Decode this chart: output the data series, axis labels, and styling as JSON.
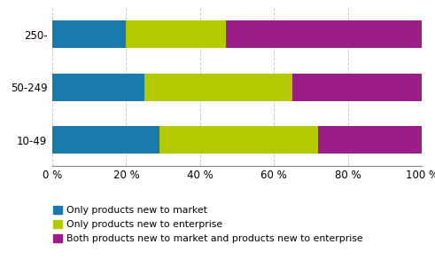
{
  "categories": [
    "250-",
    "50-249",
    "10-49"
  ],
  "series": [
    {
      "label": "Only products new to market",
      "values": [
        20,
        25,
        29
      ],
      "color": "#1a7aab"
    },
    {
      "label": "Only products new to enterprise",
      "values": [
        27,
        40,
        43
      ],
      "color": "#b5c900"
    },
    {
      "label": "Both products new to market and products new to enterprise",
      "values": [
        53,
        35,
        28
      ],
      "color": "#9b1d87"
    }
  ],
  "xlim": [
    0,
    100
  ],
  "xticks": [
    0,
    20,
    40,
    60,
    80,
    100
  ],
  "xticklabels": [
    "0 %",
    "20 %",
    "40 %",
    "60 %",
    "80 %",
    "100 %"
  ],
  "legend_fontsize": 7.8,
  "tick_fontsize": 8.5,
  "bar_height": 0.52,
  "background_color": "#ffffff"
}
